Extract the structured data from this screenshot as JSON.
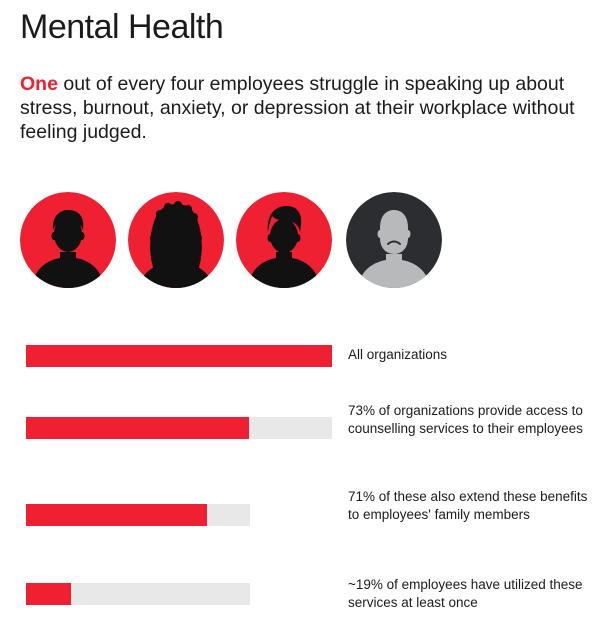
{
  "title": "Mental Health",
  "intro": {
    "highlight": "One",
    "text": " out of every four employees struggle in speaking up about stress, burnout, anxiety, or depression at their workplace without feeling judged."
  },
  "colors": {
    "accent": "#ee2031",
    "track": "#e8e8e8",
    "dark_circle": "#2b2d31",
    "silhouette": "#111111",
    "struggling_silhouette": "#b8b9bb"
  },
  "avatars": [
    {
      "icon": "person-short-hair-icon",
      "style": "red"
    },
    {
      "icon": "person-long-hair-icon",
      "style": "red"
    },
    {
      "icon": "person-styled-hair-icon",
      "style": "red"
    },
    {
      "icon": "sad-person-icon",
      "style": "dark"
    }
  ],
  "chart_data": {
    "type": "bar",
    "orientation": "horizontal",
    "categories": [
      "All organizations",
      "73% of organizations provide access to counselling services to their employees",
      "71% of these also extend these benefits to employees' family members",
      "~19% of employees have utilized these services at least once"
    ],
    "values": [
      100,
      73,
      71,
      19
    ],
    "unit": "%",
    "grid": false,
    "legend": "none"
  }
}
